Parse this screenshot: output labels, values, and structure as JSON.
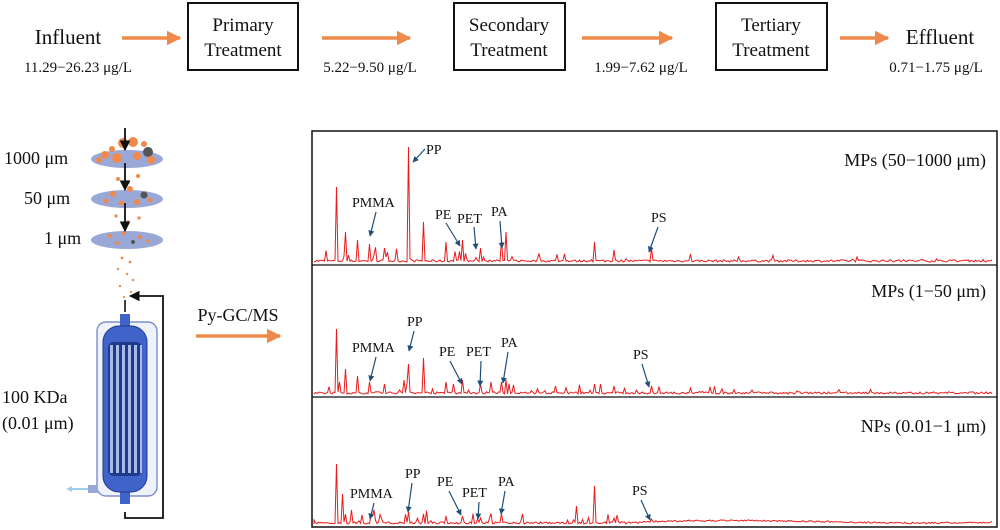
{
  "flow": {
    "influent_label": "Influent",
    "influent_conc": "11.29−26.23 μg/L",
    "primary": [
      "Primary",
      "Treatment"
    ],
    "primary_conc": "5.22−9.50 μg/L",
    "secondary": [
      "Secondary",
      "Treatment"
    ],
    "secondary_conc": "1.99−7.62 μg/L",
    "tertiary": [
      "Tertiary",
      "Treatment"
    ],
    "effluent_label": "Effluent",
    "effluent_conc": "0.71−1.75 μg/L",
    "arrow_color": "#F08A4B"
  },
  "filtration": {
    "sizes": [
      "1000 μm",
      "50 μm",
      "1 μm"
    ],
    "membrane": [
      "100 KDa",
      "(0.01 μm)"
    ],
    "method": "Py-GC/MS",
    "disk_color": "#9AA8D8",
    "particle_color": "#F08A4B",
    "dark_particle_color": "#555555",
    "module_color": "#3F63C8"
  },
  "spectra": {
    "line_color": "#E81C1C",
    "pointer_color": "#1F4E79",
    "panels": [
      {
        "title": "MPs (50−1000 μm)",
        "labels": [
          {
            "text": "PP"
          },
          {
            "text": "PMMA"
          },
          {
            "text": "PE"
          },
          {
            "text": "PET"
          },
          {
            "text": "PA"
          },
          {
            "text": "PS"
          }
        ]
      },
      {
        "title": "MPs (1−50 μm)",
        "labels": [
          {
            "text": "PMMA"
          },
          {
            "text": "PP"
          },
          {
            "text": "PE"
          },
          {
            "text": "PET"
          },
          {
            "text": "PA"
          },
          {
            "text": "PS"
          }
        ]
      },
      {
        "title": "NPs (0.01−1 μm)",
        "labels": [
          {
            "text": "PMMA"
          },
          {
            "text": "PP"
          },
          {
            "text": "PE"
          },
          {
            "text": "PET"
          },
          {
            "text": "PA"
          },
          {
            "text": "PS"
          }
        ]
      }
    ]
  }
}
